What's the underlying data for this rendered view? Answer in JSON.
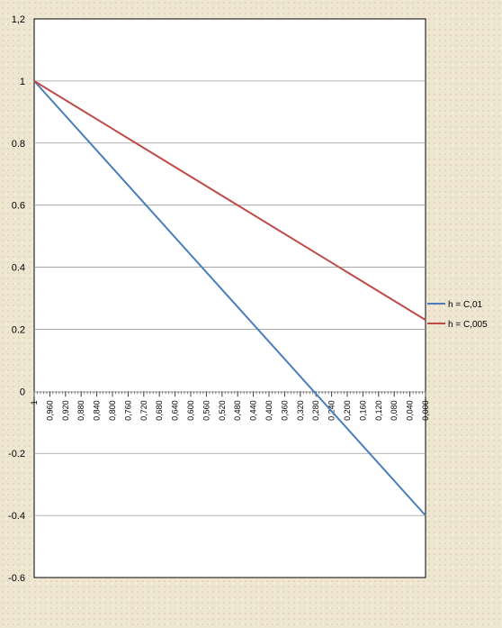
{
  "chart_data": {
    "type": "line",
    "x_tick_labels": [
      "1",
      "0,960",
      "0,920",
      "0,880",
      "0,840",
      "0,800",
      "0,760",
      "0,720",
      "0,680",
      "0,640",
      "0,600",
      "0,560",
      "0,520",
      "0,480",
      "0,440",
      "0,400",
      "0,360",
      "0,320",
      "0,280",
      "0,240",
      "0,200",
      "0,160",
      "0,120",
      "0,080",
      "0,040",
      "0,000"
    ],
    "x_range": [
      1.0,
      0.0
    ],
    "ylim": [
      -0.6,
      1.2
    ],
    "y_ticks": [
      1.2,
      1,
      0.8,
      0.6,
      0.4,
      0.2,
      0,
      -0.2,
      -0.4,
      -0.6
    ],
    "y_tick_labels": [
      "1,2",
      "1",
      "0.8",
      "0.6",
      "0.4",
      "0.2",
      "0",
      "-0.2",
      "-0.4",
      "-0.6"
    ],
    "grid": "horizontal",
    "legend_position": "right",
    "series": [
      {
        "name": "h = C,01",
        "color": "#4a7ebb",
        "x": [
          1.0,
          0.0
        ],
        "y": [
          1.0,
          -0.4
        ]
      },
      {
        "name": "h = C,005",
        "color": "#be4b48",
        "x": [
          1.0,
          0.0
        ],
        "y": [
          1.0,
          0.23
        ]
      }
    ],
    "title": "",
    "xlabel": "",
    "ylabel": ""
  }
}
